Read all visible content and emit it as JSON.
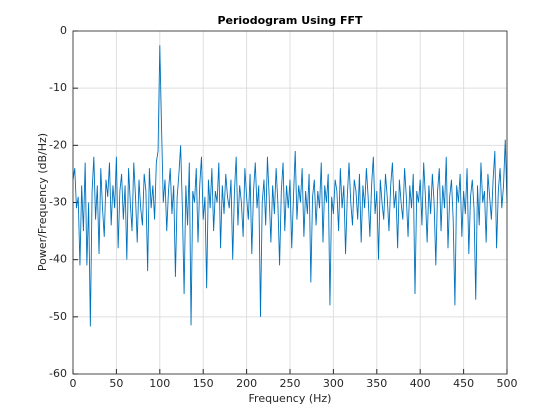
{
  "chart_data": {
    "type": "line",
    "title": "Periodogram Using FFT",
    "xlabel": "Frequency (Hz)",
    "ylabel": "Power/Frequency (dB/Hz)",
    "xlim": [
      0,
      500
    ],
    "xticks": [
      0,
      50,
      100,
      150,
      200,
      250,
      300,
      350,
      400,
      450,
      500
    ],
    "ylim": [
      -60,
      0
    ],
    "yticks": [
      -60,
      -50,
      -40,
      -30,
      -20,
      -10,
      0
    ],
    "grid": true,
    "x": [
      0,
      2,
      4,
      6,
      8,
      10,
      12,
      14,
      16,
      18,
      20,
      22,
      24,
      26,
      28,
      30,
      32,
      34,
      36,
      38,
      40,
      42,
      44,
      46,
      48,
      50,
      52,
      54,
      56,
      58,
      60,
      62,
      64,
      66,
      68,
      70,
      72,
      74,
      76,
      78,
      80,
      82,
      84,
      86,
      88,
      90,
      92,
      94,
      96,
      98,
      100,
      102,
      104,
      106,
      108,
      110,
      112,
      114,
      116,
      118,
      120,
      122,
      124,
      126,
      128,
      130,
      132,
      134,
      136,
      138,
      140,
      142,
      144,
      146,
      148,
      150,
      152,
      154,
      156,
      158,
      160,
      162,
      164,
      166,
      168,
      170,
      172,
      174,
      176,
      178,
      180,
      182,
      184,
      186,
      188,
      190,
      192,
      194,
      196,
      198,
      200,
      202,
      204,
      206,
      208,
      210,
      212,
      214,
      216,
      218,
      220,
      222,
      224,
      226,
      228,
      230,
      232,
      234,
      236,
      238,
      240,
      242,
      244,
      246,
      248,
      250,
      252,
      254,
      256,
      258,
      260,
      262,
      264,
      266,
      268,
      270,
      272,
      274,
      276,
      278,
      280,
      282,
      284,
      286,
      288,
      290,
      292,
      294,
      296,
      298,
      300,
      302,
      304,
      306,
      308,
      310,
      312,
      314,
      316,
      318,
      320,
      322,
      324,
      326,
      328,
      330,
      332,
      334,
      336,
      338,
      340,
      342,
      344,
      346,
      348,
      350,
      352,
      354,
      356,
      358,
      360,
      362,
      364,
      366,
      368,
      370,
      372,
      374,
      376,
      378,
      380,
      382,
      384,
      386,
      388,
      390,
      392,
      394,
      396,
      398,
      400,
      402,
      404,
      406,
      408,
      410,
      412,
      414,
      416,
      418,
      420,
      422,
      424,
      426,
      428,
      430,
      432,
      434,
      436,
      438,
      440,
      442,
      444,
      446,
      448,
      450,
      452,
      454,
      456,
      458,
      460,
      462,
      464,
      466,
      468,
      470,
      472,
      474,
      476,
      478,
      480,
      482,
      484,
      486,
      488,
      490,
      492,
      494,
      496,
      498,
      500
    ],
    "series": [
      {
        "name": "Periodogram",
        "color": "#0072bd",
        "values": [
          -26,
          -24,
          -31,
          -29,
          -41,
          -27,
          -35,
          -23,
          -41,
          -30,
          -51.7,
          -28,
          -22,
          -33,
          -27,
          -39,
          -24,
          -31,
          -36,
          -26,
          -29,
          -23,
          -34,
          -27,
          -31,
          -22,
          -38,
          -28,
          -25,
          -33,
          -27,
          -40,
          -24,
          -30,
          -35,
          -23,
          -29,
          -37,
          -26,
          -31,
          -34,
          -25,
          -28,
          -42,
          -24,
          -31,
          -27,
          -33,
          -23,
          -21,
          -2.5,
          -16.8,
          -30,
          -26,
          -35,
          -28,
          -24,
          -32,
          -27,
          -43,
          -29,
          -25,
          -20,
          -31,
          -46,
          -27,
          -34,
          -23,
          -51.5,
          -28,
          -30,
          -24,
          -37,
          -27,
          -22,
          -33,
          -29,
          -45,
          -26,
          -31,
          -24,
          -35,
          -28,
          -30,
          -23,
          -38,
          -27,
          -32,
          -25,
          -29,
          -31,
          -26,
          -40,
          -28,
          -22,
          -34,
          -27,
          -30,
          -36,
          -24,
          -29,
          -33,
          -25,
          -39,
          -28,
          -23,
          -31,
          -27,
          -50,
          -30,
          -26,
          -34,
          -22,
          -29,
          -37,
          -27,
          -32,
          -24,
          -30,
          -41,
          -28,
          -23,
          -35,
          -27,
          -31,
          -26,
          -38,
          -29,
          -21,
          -33,
          -27,
          -30,
          -24,
          -36,
          -28,
          -32,
          -25,
          -44,
          -29,
          -26,
          -34,
          -28,
          -31,
          -23,
          -37,
          -27,
          -30,
          -25,
          -48,
          -29,
          -32,
          -26,
          -28,
          -35,
          -24,
          -31,
          -27,
          -39,
          -29,
          -23,
          -30,
          -34,
          -26,
          -28,
          -33,
          -25,
          -37,
          -27,
          -31,
          -24,
          -29,
          -36,
          -27,
          -22,
          -32,
          -28,
          -40,
          -26,
          -30,
          -33,
          -25,
          -29,
          -35,
          -27,
          -23,
          -31,
          -28,
          -38,
          -26,
          -30,
          -33,
          -24,
          -29,
          -36,
          -27,
          -31,
          -25,
          -46,
          -28,
          -30,
          -26,
          -34,
          -23,
          -29,
          -37,
          -27,
          -32,
          -25,
          -30,
          -41,
          -28,
          -24,
          -35,
          -27,
          -31,
          -22,
          -38,
          -29,
          -26,
          -33,
          -48,
          -27,
          -30,
          -25,
          -36,
          -28,
          -32,
          -24,
          -39,
          -29,
          -26,
          -31,
          -47,
          -27,
          -34,
          -23,
          -30,
          -28,
          -37,
          -25,
          -29,
          -33,
          -26,
          -21,
          -38,
          -28,
          -24,
          -31,
          -27,
          -19,
          -30
        ]
      }
    ]
  }
}
